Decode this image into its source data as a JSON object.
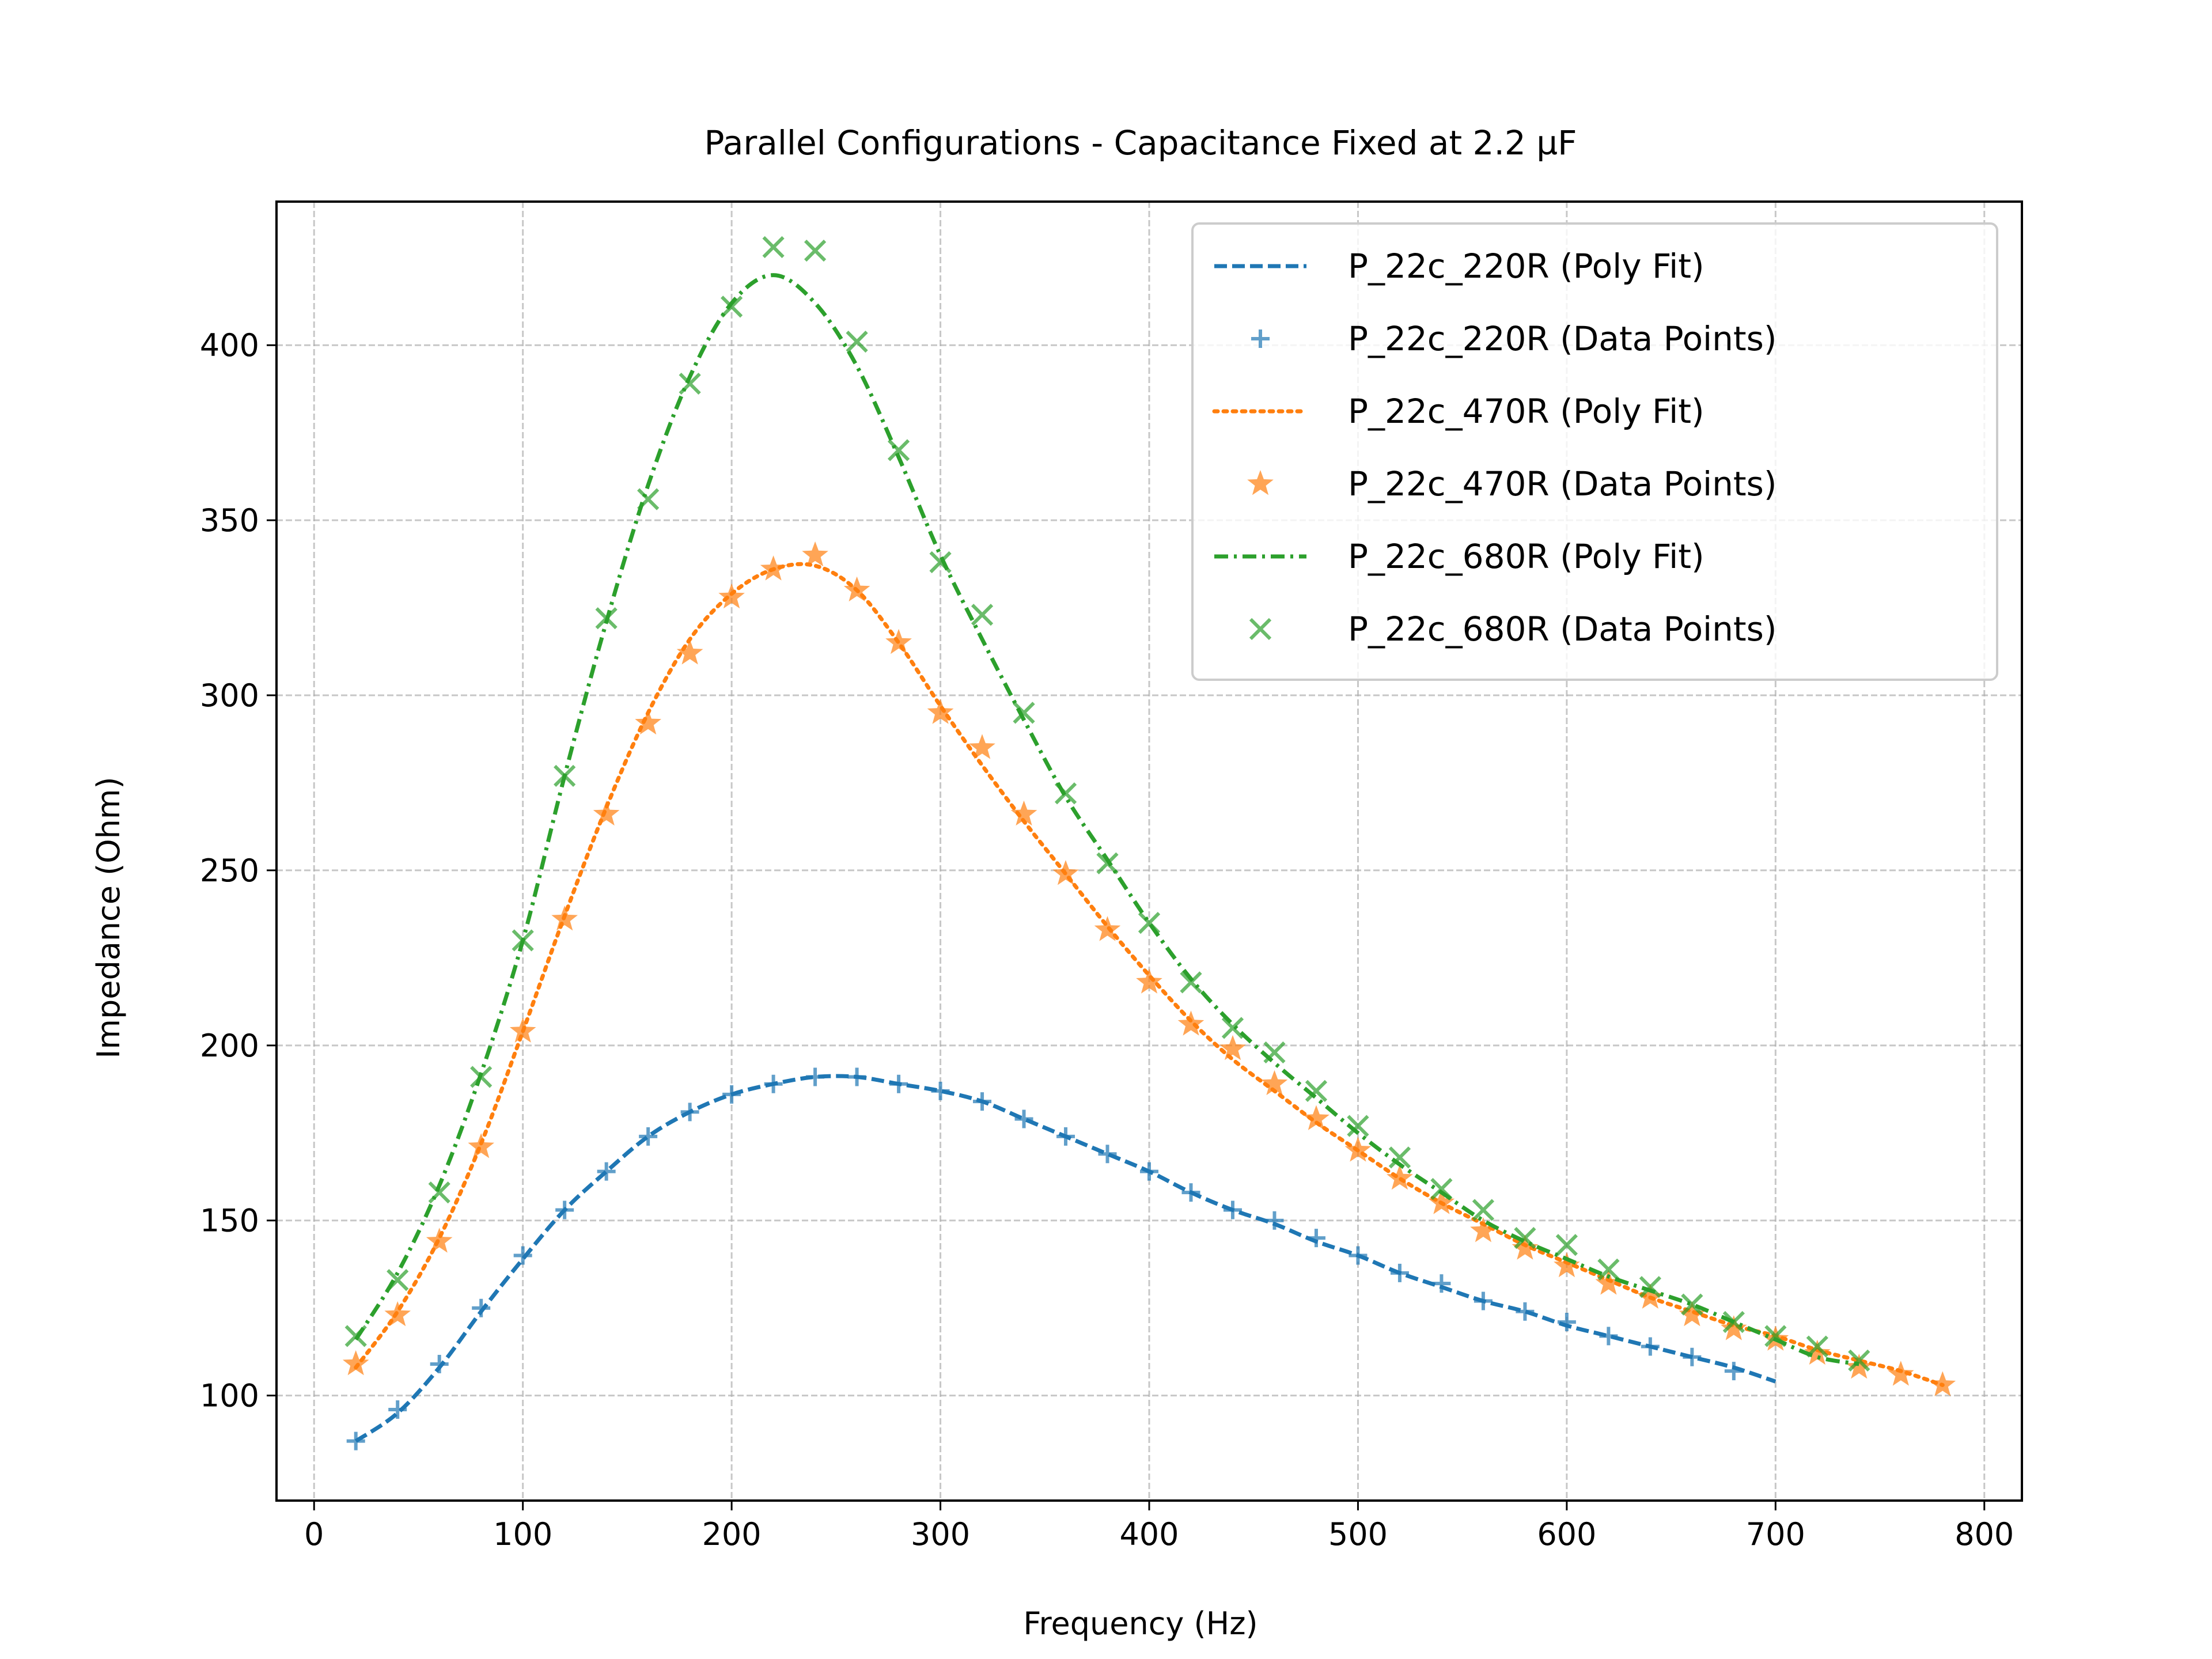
{
  "chart_data": {
    "type": "line",
    "title": "Parallel Configurations - Capacitance Fixed at 2.2 µF",
    "xlabel": "Frequency (Hz)",
    "ylabel": "Impedance (Ohm)",
    "xlim": [
      -18,
      818
    ],
    "ylim": [
      70,
      441
    ],
    "xticks": [
      0,
      100,
      200,
      300,
      400,
      500,
      600,
      700,
      800
    ],
    "yticks": [
      100,
      150,
      200,
      250,
      300,
      350,
      400
    ],
    "grid": true,
    "legend_position": "top-right",
    "series": [
      {
        "name": "P_22c_220R (Poly Fit)",
        "kind": "line",
        "style": "dashed",
        "color": "#1f77b4",
        "x": [
          20,
          40,
          60,
          80,
          100,
          120,
          140,
          160,
          180,
          200,
          220,
          240,
          260,
          280,
          300,
          320,
          340,
          360,
          380,
          400,
          420,
          440,
          460,
          480,
          500,
          520,
          540,
          560,
          580,
          600,
          620,
          640,
          660,
          680,
          700
        ],
        "y": [
          87,
          95,
          108,
          124,
          139,
          153,
          164,
          174,
          181,
          186,
          189,
          191,
          191,
          189,
          187,
          184,
          179,
          174,
          169,
          164,
          158,
          153,
          149,
          144,
          140,
          135,
          131,
          127,
          124,
          120,
          117,
          114,
          111,
          108,
          104
        ]
      },
      {
        "name": "P_22c_220R (Data Points)",
        "kind": "scatter",
        "marker": "plus",
        "color": "#1f77b4",
        "x": [
          20,
          40,
          60,
          80,
          100,
          120,
          140,
          160,
          180,
          200,
          220,
          240,
          260,
          280,
          300,
          320,
          340,
          360,
          380,
          400,
          420,
          440,
          460,
          480,
          500,
          520,
          540,
          560,
          580,
          600,
          620,
          640,
          660,
          680
        ],
        "y": [
          87,
          96,
          109,
          125,
          140,
          153,
          164,
          174,
          181,
          186,
          189,
          191,
          191,
          189,
          187,
          184,
          179,
          174,
          169,
          164,
          158,
          153,
          150,
          145,
          140,
          135,
          132,
          127,
          124,
          121,
          117,
          114,
          111,
          107
        ]
      },
      {
        "name": "P_22c_470R (Poly Fit)",
        "kind": "line",
        "style": "dotted",
        "color": "#ff7f0e",
        "x": [
          20,
          40,
          60,
          80,
          100,
          120,
          140,
          160,
          180,
          200,
          220,
          240,
          260,
          280,
          300,
          320,
          340,
          360,
          380,
          400,
          420,
          440,
          460,
          480,
          500,
          520,
          540,
          560,
          580,
          600,
          620,
          640,
          660,
          680,
          700,
          720,
          740,
          760,
          780
        ],
        "y": [
          108,
          124,
          145,
          172,
          204,
          237,
          268,
          295,
          316,
          329,
          336,
          337,
          330,
          315,
          297,
          280,
          264,
          249,
          234,
          220,
          207,
          196,
          187,
          178,
          170,
          162,
          155,
          149,
          143,
          138,
          133,
          128,
          124,
          120,
          117,
          113,
          110,
          107,
          103
        ]
      },
      {
        "name": "P_22c_470R (Data Points)",
        "kind": "scatter",
        "marker": "star",
        "color": "#ff7f0e",
        "x": [
          20,
          40,
          60,
          80,
          100,
          120,
          140,
          160,
          180,
          200,
          220,
          240,
          260,
          280,
          300,
          320,
          340,
          360,
          380,
          400,
          420,
          440,
          460,
          480,
          500,
          520,
          540,
          560,
          580,
          600,
          620,
          640,
          660,
          680,
          700,
          720,
          740,
          760,
          780
        ],
        "y": [
          109,
          123,
          144,
          171,
          204,
          236,
          266,
          292,
          312,
          328,
          336,
          340,
          330,
          315,
          295,
          285,
          266,
          249,
          233,
          218,
          206,
          199,
          189,
          179,
          170,
          162,
          155,
          147,
          142,
          137,
          132,
          128,
          123,
          119,
          116,
          112,
          108,
          106,
          103
        ]
      },
      {
        "name": "P_22c_680R (Poly Fit)",
        "kind": "line",
        "style": "dashdot",
        "color": "#2ca02c",
        "x": [
          20,
          40,
          60,
          80,
          100,
          120,
          140,
          160,
          180,
          200,
          220,
          240,
          260,
          280,
          300,
          320,
          340,
          360,
          380,
          400,
          420,
          440,
          460,
          480,
          500,
          520,
          540,
          560,
          580,
          600,
          620,
          640,
          660,
          680,
          700,
          720,
          740
        ],
        "y": [
          116,
          135,
          160,
          192,
          230,
          277,
          321,
          360,
          391,
          412,
          420,
          412,
          394,
          368,
          340,
          316,
          293,
          271,
          253,
          235,
          219,
          206,
          195,
          185,
          175,
          166,
          158,
          150,
          144,
          139,
          134,
          130,
          126,
          121,
          116,
          111,
          109
        ]
      },
      {
        "name": "P_22c_680R (Data Points)",
        "kind": "scatter",
        "marker": "x",
        "color": "#2ca02c",
        "x": [
          20,
          40,
          60,
          80,
          100,
          120,
          140,
          160,
          180,
          200,
          220,
          240,
          260,
          280,
          300,
          320,
          340,
          360,
          380,
          400,
          420,
          440,
          460,
          480,
          500,
          520,
          540,
          560,
          580,
          600,
          620,
          640,
          660,
          680,
          700,
          720,
          740
        ],
        "y": [
          117,
          133,
          158,
          191,
          230,
          277,
          322,
          356,
          389,
          411,
          428,
          427,
          401,
          370,
          338,
          323,
          295,
          272,
          252,
          235,
          218,
          205,
          198,
          187,
          177,
          168,
          159,
          153,
          145,
          143,
          136,
          131,
          126,
          121,
          117,
          114,
          110
        ]
      }
    ]
  }
}
